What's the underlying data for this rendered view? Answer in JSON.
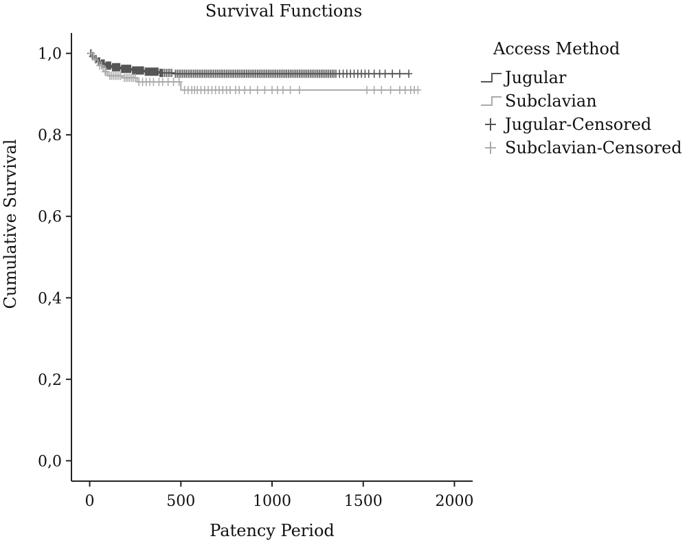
{
  "chart_data": {
    "type": "line",
    "subtype": "kaplan-meier",
    "title": "Survival Functions",
    "xlabel": "Patency Period",
    "ylabel": "Cumulative Survival",
    "xlim": [
      -100,
      2100
    ],
    "ylim": [
      -0.05,
      1.05
    ],
    "x_ticks": [
      0,
      500,
      1000,
      1500,
      2000
    ],
    "x_tick_labels": [
      "0",
      "500",
      "1000",
      "1500",
      "2000"
    ],
    "y_ticks": [
      0.0,
      0.2,
      0.4,
      0.6,
      0.8,
      1.0
    ],
    "y_tick_labels": [
      "0,0",
      "0,2",
      "0,4",
      "0,6",
      "0,8",
      "1,0"
    ],
    "grid": false,
    "legend": {
      "title": "Access Method",
      "position": "top-right",
      "entries": [
        {
          "label": "Jugular",
          "kind": "step",
          "color": "#555555"
        },
        {
          "label": "Subclavian",
          "kind": "step",
          "color": "#aaaaaa"
        },
        {
          "label": "Jugular-Censored",
          "kind": "censor",
          "color": "#555555"
        },
        {
          "label": "Subclavian-Censored",
          "kind": "censor",
          "color": "#aaaaaa"
        }
      ]
    },
    "series": [
      {
        "name": "Jugular",
        "color": "#555555",
        "steps": [
          [
            0,
            1.0
          ],
          [
            12,
            0.993
          ],
          [
            25,
            0.986
          ],
          [
            40,
            0.98
          ],
          [
            60,
            0.975
          ],
          [
            85,
            0.97
          ],
          [
            120,
            0.966
          ],
          [
            170,
            0.962
          ],
          [
            230,
            0.958
          ],
          [
            300,
            0.955
          ],
          [
            380,
            0.952
          ],
          [
            460,
            0.95
          ],
          [
            1750,
            0.95
          ]
        ],
        "censored_x": [
          5,
          10,
          15,
          20,
          30,
          35,
          45,
          50,
          55,
          65,
          70,
          75,
          80,
          90,
          95,
          100,
          105,
          110,
          115,
          125,
          130,
          135,
          140,
          145,
          150,
          155,
          160,
          165,
          175,
          180,
          185,
          190,
          195,
          200,
          205,
          210,
          215,
          220,
          225,
          235,
          240,
          245,
          250,
          255,
          260,
          265,
          270,
          275,
          280,
          285,
          290,
          295,
          305,
          310,
          315,
          320,
          325,
          330,
          335,
          340,
          345,
          350,
          355,
          360,
          365,
          370,
          375,
          385,
          390,
          395,
          400,
          410,
          420,
          430,
          440,
          450,
          470,
          480,
          490,
          500,
          510,
          520,
          530,
          540,
          550,
          560,
          570,
          580,
          590,
          600,
          610,
          620,
          630,
          640,
          650,
          660,
          670,
          680,
          690,
          700,
          710,
          720,
          730,
          740,
          750,
          760,
          770,
          780,
          790,
          800,
          810,
          820,
          830,
          840,
          850,
          860,
          870,
          880,
          890,
          900,
          910,
          920,
          930,
          940,
          950,
          960,
          970,
          980,
          990,
          1000,
          1010,
          1020,
          1030,
          1040,
          1050,
          1060,
          1070,
          1080,
          1090,
          1100,
          1110,
          1120,
          1130,
          1140,
          1150,
          1160,
          1170,
          1180,
          1190,
          1200,
          1210,
          1220,
          1230,
          1240,
          1250,
          1260,
          1270,
          1280,
          1290,
          1300,
          1310,
          1320,
          1330,
          1340,
          1350,
          1370,
          1390,
          1410,
          1430,
          1450,
          1470,
          1490,
          1510,
          1530,
          1560,
          1590,
          1620,
          1660,
          1700,
          1750
        ]
      },
      {
        "name": "Subclavian",
        "color": "#aaaaaa",
        "steps": [
          [
            0,
            1.0
          ],
          [
            20,
            0.985
          ],
          [
            45,
            0.97
          ],
          [
            75,
            0.955
          ],
          [
            100,
            0.945
          ],
          [
            180,
            0.94
          ],
          [
            260,
            0.93
          ],
          [
            500,
            0.91
          ],
          [
            1800,
            0.91
          ]
        ],
        "censored_x": [
          10,
          30,
          55,
          65,
          85,
          90,
          110,
          120,
          130,
          140,
          150,
          160,
          170,
          190,
          200,
          210,
          220,
          230,
          240,
          250,
          270,
          290,
          310,
          330,
          350,
          380,
          400,
          430,
          460,
          490,
          520,
          540,
          560,
          575,
          590,
          610,
          630,
          650,
          670,
          690,
          710,
          730,
          750,
          770,
          800,
          820,
          850,
          880,
          920,
          960,
          1000,
          1030,
          1060,
          1100,
          1150,
          1520,
          1560,
          1600,
          1650,
          1700,
          1730,
          1760,
          1780,
          1800
        ]
      }
    ]
  }
}
